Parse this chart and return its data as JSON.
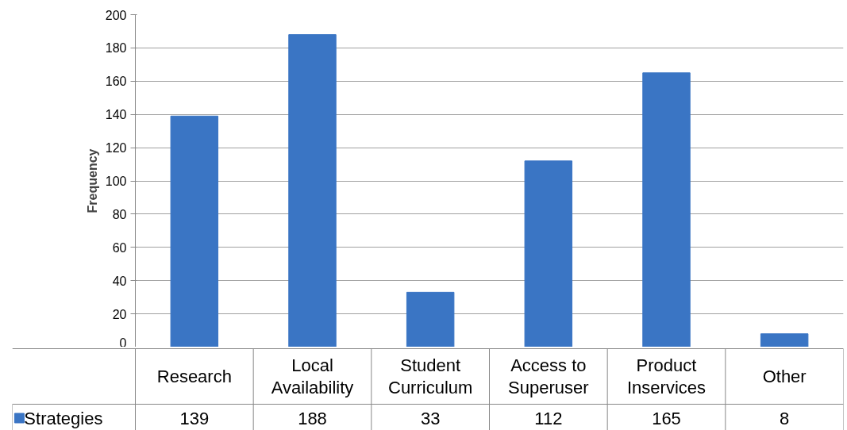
{
  "chart_data": {
    "type": "bar",
    "ylabel": "Frequency",
    "categories": [
      "Research",
      "Local Availability",
      "Student Curriculum",
      "Access to Superuser",
      "Product Inservices",
      "Other"
    ],
    "series": [
      {
        "name": "Strategies",
        "color": "#3a75c4",
        "values": [
          139,
          188,
          33,
          112,
          165,
          8
        ]
      }
    ],
    "ylim": [
      0,
      200
    ],
    "yticks": [
      0,
      20,
      40,
      60,
      80,
      100,
      120,
      140,
      160,
      180,
      200
    ],
    "grid": "y",
    "legend": "bottom",
    "data_labels": true
  }
}
